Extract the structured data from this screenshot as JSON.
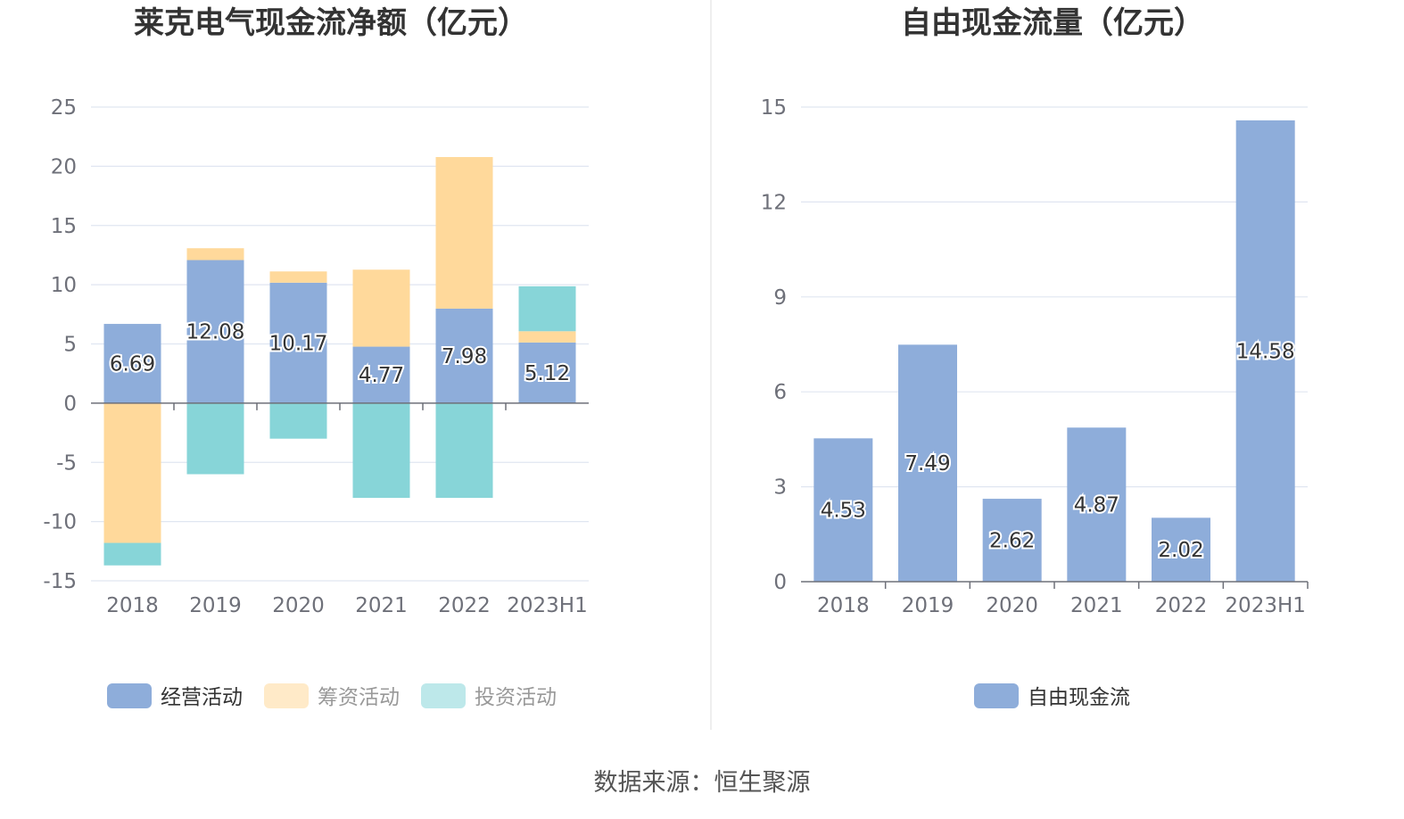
{
  "chart_data": [
    {
      "type": "bar",
      "stacked": true,
      "title": "莱克电气现金流净额（亿元）",
      "categories": [
        "2018",
        "2019",
        "2020",
        "2021",
        "2022",
        "2023H1"
      ],
      "ylim": [
        -15,
        25
      ],
      "yticks": [
        25,
        20,
        15,
        10,
        5,
        0,
        -5,
        -10,
        -15
      ],
      "grid": true,
      "legend_position": "bottom",
      "series": [
        {
          "name": "经营活动",
          "color": "#8eadda",
          "values": [
            6.69,
            12.08,
            10.17,
            4.77,
            7.98,
            5.12
          ],
          "labels": [
            "6.69",
            "12.08",
            "10.17",
            "4.77",
            "7.98",
            "5.12"
          ]
        },
        {
          "name": "筹资活动",
          "color": "#ffd99b",
          "values": [
            -11.8,
            1.0,
            0.95,
            6.5,
            12.8,
            0.95
          ]
        },
        {
          "name": "投资活动",
          "color": "#87d5d8",
          "values": [
            -1.9,
            -6.0,
            -3.0,
            -8.0,
            -8.0,
            3.8
          ]
        }
      ]
    },
    {
      "type": "bar",
      "title": "自由现金流量（亿元）",
      "categories": [
        "2018",
        "2019",
        "2020",
        "2021",
        "2022",
        "2023H1"
      ],
      "ylim": [
        0,
        15
      ],
      "yticks": [
        15,
        12,
        9,
        6,
        3,
        0
      ],
      "grid": true,
      "legend_position": "bottom",
      "series": [
        {
          "name": "自由现金流",
          "color": "#8eadda",
          "values": [
            4.53,
            7.49,
            2.62,
            4.87,
            2.02,
            14.58
          ],
          "labels": [
            "4.53",
            "7.49",
            "2.62",
            "4.87",
            "2.02",
            "14.58"
          ]
        }
      ]
    }
  ],
  "source_text": "数据来源：恒生聚源"
}
